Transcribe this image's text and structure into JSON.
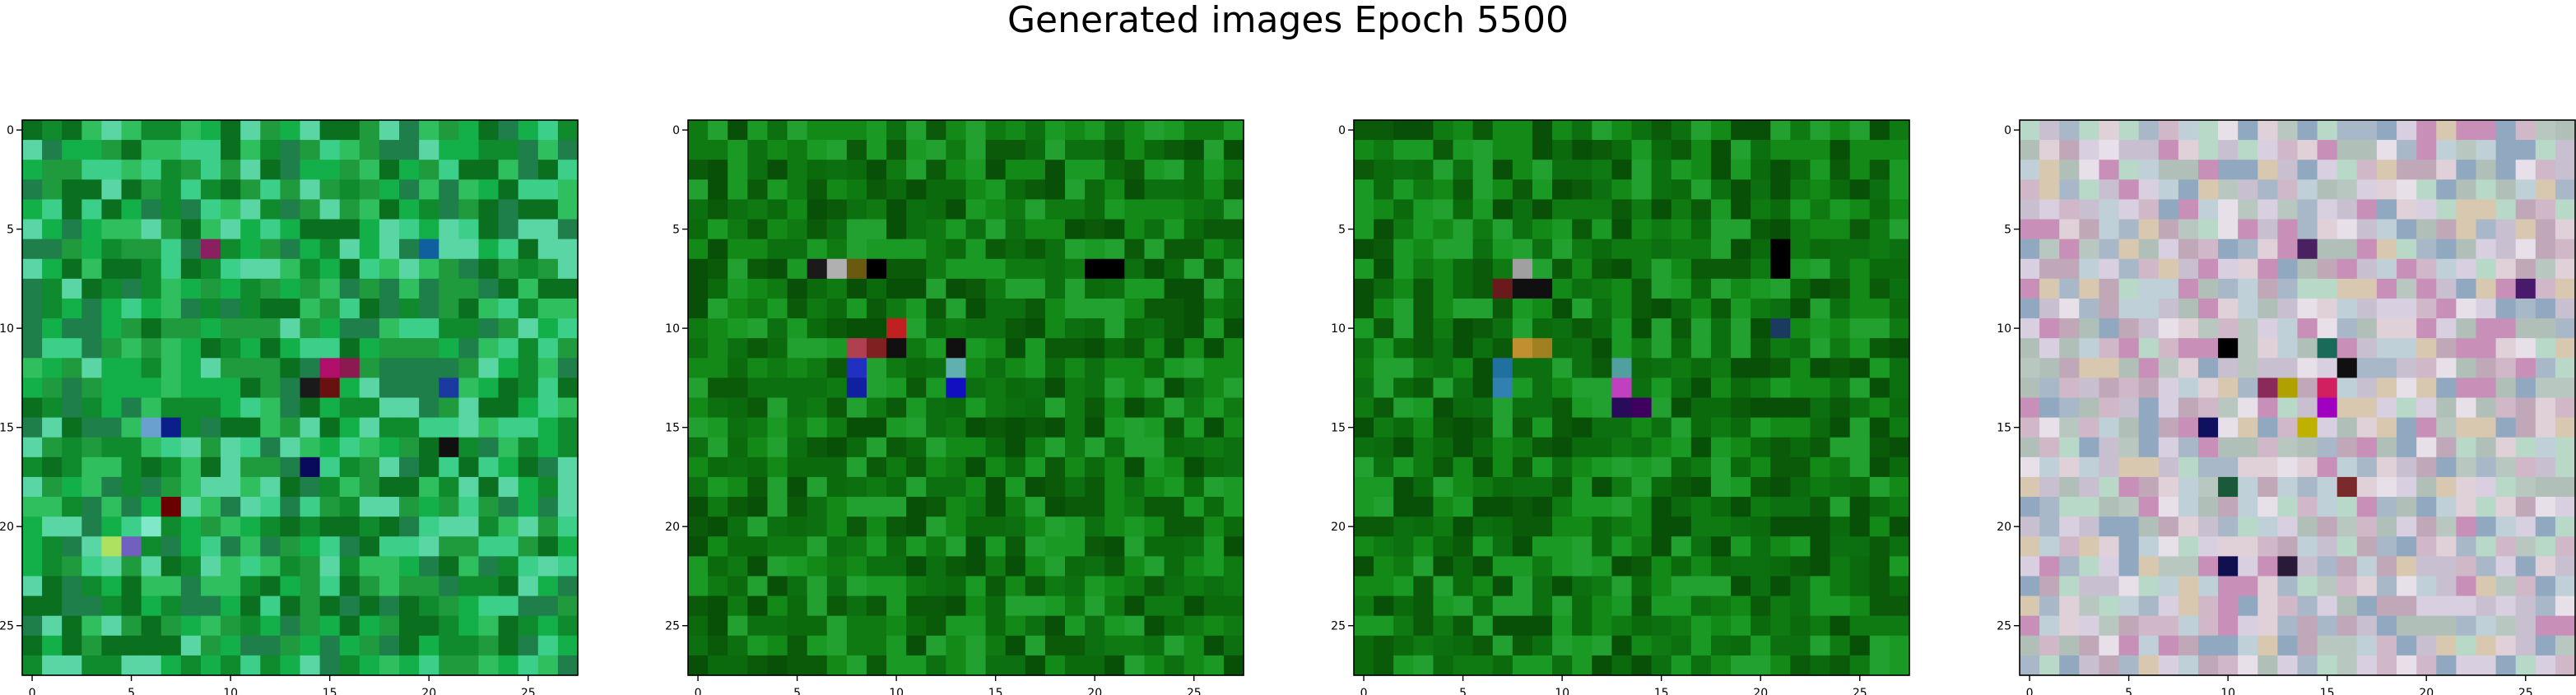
{
  "title": "Generated images Epoch 5500",
  "chart_data": [
    {
      "type": "heatmap",
      "title": "",
      "xlabel": "",
      "ylabel": "",
      "grid_size": [
        28,
        28
      ],
      "xlim": [
        -0.5,
        27.5
      ],
      "ylim": [
        27.5,
        -0.5
      ],
      "xticks": [
        0,
        5,
        10,
        15,
        20,
        25
      ],
      "yticks": [
        0,
        5,
        10,
        15,
        20,
        25
      ],
      "xtick_labels": [
        "0",
        "5",
        "10",
        "15",
        "20",
        "25"
      ],
      "ytick_labels": [
        "0",
        "5",
        "10",
        "15",
        "20",
        "25"
      ],
      "palette": [
        "#1f9a3c",
        "#0f8a2c",
        "#2fbf5e",
        "#13b04a",
        "#3ccf8a",
        "#0a6f1e",
        "#5ad6a5",
        "#1e7f4a"
      ],
      "highlights": [
        [
          12,
          15,
          "#b0106a"
        ],
        [
          12,
          16,
          "#8a1a50"
        ],
        [
          13,
          14,
          "#1a1a1a"
        ],
        [
          13,
          15,
          "#6b1010"
        ],
        [
          15,
          7,
          "#0a1f8a"
        ],
        [
          15,
          6,
          "#6aa0d0"
        ],
        [
          17,
          14,
          "#0a0a5a"
        ],
        [
          19,
          7,
          "#6a0000"
        ],
        [
          20,
          6,
          "#80e8c8"
        ],
        [
          21,
          4,
          "#b0e060"
        ],
        [
          21,
          5,
          "#7060c0"
        ],
        [
          13,
          21,
          "#1a3aa0"
        ],
        [
          16,
          21,
          "#101010"
        ],
        [
          6,
          9,
          "#8a2060"
        ],
        [
          6,
          20,
          "#1060a0"
        ]
      ]
    },
    {
      "type": "heatmap",
      "title": "",
      "xlabel": "",
      "ylabel": "",
      "grid_size": [
        28,
        28
      ],
      "xlim": [
        -0.5,
        27.5
      ],
      "ylim": [
        27.5,
        -0.5
      ],
      "xticks": [
        0,
        5,
        10,
        15,
        20,
        25
      ],
      "yticks": [
        0,
        5,
        10,
        15,
        20,
        25
      ],
      "xtick_labels": [
        "0",
        "5",
        "10",
        "15",
        "20",
        "25"
      ],
      "ytick_labels": [
        "0",
        "5",
        "10",
        "15",
        "20",
        "25"
      ],
      "palette": [
        "#0f7a12",
        "#0a6a0c",
        "#138a18",
        "#0b5a0a",
        "#1a9a25",
        "#085008",
        "#22a030",
        "#0d7010"
      ],
      "highlights": [
        [
          7,
          6,
          "#1a1a1a"
        ],
        [
          7,
          7,
          "#b0b0b0"
        ],
        [
          7,
          8,
          "#6a5a10"
        ],
        [
          7,
          9,
          "#000000"
        ],
        [
          10,
          10,
          "#c02020"
        ],
        [
          11,
          8,
          "#b04050"
        ],
        [
          11,
          9,
          "#802020"
        ],
        [
          11,
          10,
          "#101010"
        ],
        [
          12,
          8,
          "#2030c0"
        ],
        [
          13,
          8,
          "#1020a0"
        ],
        [
          12,
          13,
          "#60b0b0"
        ],
        [
          13,
          13,
          "#1010c0"
        ],
        [
          11,
          13,
          "#101010"
        ],
        [
          7,
          20,
          "#000000"
        ],
        [
          7,
          21,
          "#000000"
        ]
      ]
    },
    {
      "type": "heatmap",
      "title": "",
      "xlabel": "",
      "ylabel": "",
      "grid_size": [
        28,
        28
      ],
      "xlim": [
        -0.5,
        27.5
      ],
      "ylim": [
        27.5,
        -0.5
      ],
      "xticks": [
        0,
        5,
        10,
        15,
        20,
        25
      ],
      "yticks": [
        0,
        5,
        10,
        15,
        20,
        25
      ],
      "xtick_labels": [
        "0",
        "5",
        "10",
        "15",
        "20",
        "25"
      ],
      "ytick_labels": [
        "0",
        "5",
        "10",
        "15",
        "20",
        "25"
      ],
      "palette": [
        "#0f7a12",
        "#0a6a0c",
        "#138a18",
        "#0b5a0a",
        "#1a9a25",
        "#085008",
        "#22a030",
        "#0d7010"
      ],
      "highlights": [
        [
          7,
          8,
          "#a0a0a0"
        ],
        [
          8,
          7,
          "#6a1a1a"
        ],
        [
          8,
          8,
          "#101010"
        ],
        [
          8,
          9,
          "#101010"
        ],
        [
          11,
          8,
          "#c09030"
        ],
        [
          11,
          9,
          "#a08020"
        ],
        [
          12,
          7,
          "#2070a0"
        ],
        [
          13,
          7,
          "#3080b0"
        ],
        [
          13,
          13,
          "#c040c0"
        ],
        [
          14,
          13,
          "#2a0a5a"
        ],
        [
          14,
          14,
          "#400060"
        ],
        [
          12,
          13,
          "#50a0a0"
        ],
        [
          6,
          21,
          "#000000"
        ],
        [
          7,
          21,
          "#000000"
        ],
        [
          10,
          21,
          "#1a3a60"
        ]
      ]
    },
    {
      "type": "heatmap",
      "title": "",
      "xlabel": "",
      "ylabel": "",
      "grid_size": [
        28,
        28
      ],
      "xlim": [
        -0.5,
        27.5
      ],
      "ylim": [
        27.5,
        -0.5
      ],
      "xticks": [
        0,
        5,
        10,
        15,
        20,
        25
      ],
      "yticks": [
        0,
        5,
        10,
        15,
        20,
        25
      ],
      "xtick_labels": [
        "0",
        "5",
        "10",
        "15",
        "20",
        "25"
      ],
      "ytick_labels": [
        "0",
        "5",
        "10",
        "15",
        "20",
        "25"
      ],
      "palette": [
        "#c8c0d0",
        "#d8d0e0",
        "#b8c8c0",
        "#e0d0d8",
        "#c0d0d8",
        "#d0b8c8",
        "#b0c0b8",
        "#e8e0e8",
        "#a8b8c8",
        "#c0a8b8",
        "#d8c8b0",
        "#b8d8c8",
        "#c890b8",
        "#90a8c0"
      ],
      "highlights": [
        [
          11,
          10,
          "#000000"
        ],
        [
          13,
          12,
          "#8a2a5a"
        ],
        [
          13,
          13,
          "#b0a000"
        ],
        [
          13,
          15,
          "#d02060"
        ],
        [
          14,
          15,
          "#a000c0"
        ],
        [
          15,
          14,
          "#c0b000"
        ],
        [
          15,
          9,
          "#101060"
        ],
        [
          18,
          10,
          "#1a5a3a"
        ],
        [
          22,
          10,
          "#101050"
        ],
        [
          22,
          13,
          "#2a1a3a"
        ],
        [
          6,
          14,
          "#4a2060"
        ],
        [
          11,
          15,
          "#1a6a5a"
        ],
        [
          18,
          16,
          "#7a2a2a"
        ],
        [
          8,
          25,
          "#4a1a6a"
        ],
        [
          12,
          16,
          "#101010"
        ]
      ]
    }
  ]
}
